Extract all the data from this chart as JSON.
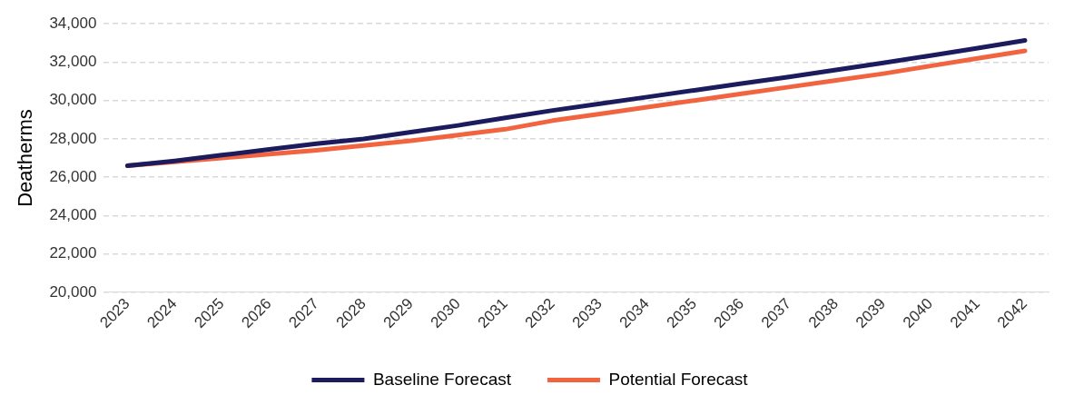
{
  "chart_data": {
    "type": "line",
    "ylabel": "Deatherms",
    "categories": [
      "2023",
      "2024",
      "2025",
      "2026",
      "2027",
      "2028",
      "2029",
      "2030",
      "2031",
      "2032",
      "2033",
      "2034",
      "2035",
      "2036",
      "2037",
      "2038",
      "2039",
      "2040",
      "2041",
      "2042"
    ],
    "series": [
      {
        "name": "Baseline Forecast",
        "color": "#1b1b5e",
        "values": [
          26600,
          26850,
          27150,
          27450,
          27750,
          28000,
          28350,
          28700,
          29100,
          29480,
          29830,
          30180,
          30530,
          30880,
          31230,
          31590,
          31960,
          32340,
          32730,
          33130
        ]
      },
      {
        "name": "Potential Forecast",
        "color": "#f26440",
        "values": [
          26600,
          26800,
          27000,
          27200,
          27400,
          27650,
          27900,
          28200,
          28500,
          28950,
          29300,
          29650,
          30000,
          30350,
          30700,
          31050,
          31400,
          31800,
          32200,
          32590
        ]
      }
    ],
    "ylim": [
      20000,
      34000
    ],
    "yticks": [
      {
        "value": 20000,
        "label": "20,000"
      },
      {
        "value": 22000,
        "label": "22,000"
      },
      {
        "value": 24000,
        "label": "24,000"
      },
      {
        "value": 26000,
        "label": "26,000"
      },
      {
        "value": 28000,
        "label": "28,000"
      },
      {
        "value": 30000,
        "label": "30,000"
      },
      {
        "value": 32000,
        "label": "32,000"
      },
      {
        "value": 34000,
        "label": "34,000"
      }
    ],
    "grid": "y",
    "legend": "bottom",
    "marker": "none",
    "line_style": "solid"
  }
}
